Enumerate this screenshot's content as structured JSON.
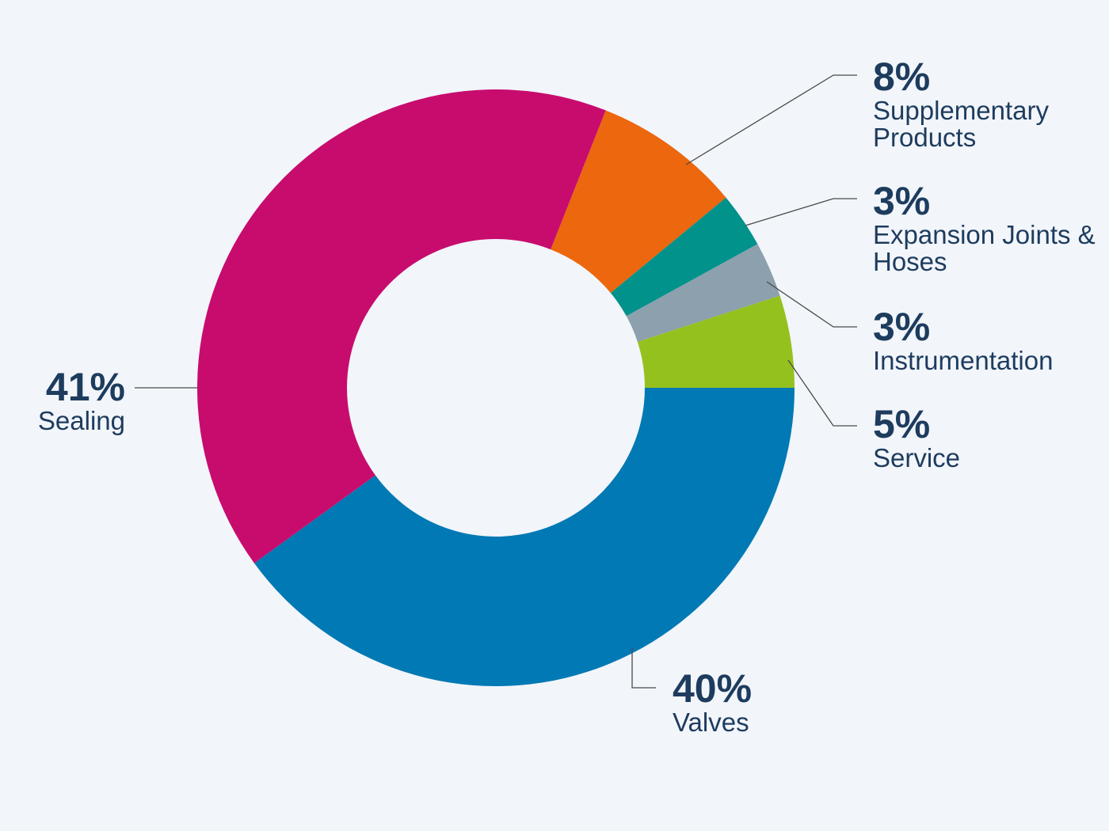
{
  "chart_data": {
    "type": "pie",
    "variant": "donut",
    "title": "",
    "slices": [
      {
        "label": "Valves",
        "value": 40,
        "value_label": "40%",
        "color": "#0079b4"
      },
      {
        "label": "Sealing",
        "value": 41,
        "value_label": "41%",
        "color": "#c70c6e"
      },
      {
        "label": "Supplementary Products",
        "value": 8,
        "value_label": "8%",
        "color": "#ec670d"
      },
      {
        "label": "Expansion Joints & Hoses",
        "value": 3,
        "value_label": "3%",
        "color": "#00928b"
      },
      {
        "label": "Instrumentation",
        "value": 3,
        "value_label": "3%",
        "color": "#8ca0ad"
      },
      {
        "label": "Service",
        "value": 5,
        "value_label": "5%",
        "color": "#95c11f"
      }
    ]
  }
}
